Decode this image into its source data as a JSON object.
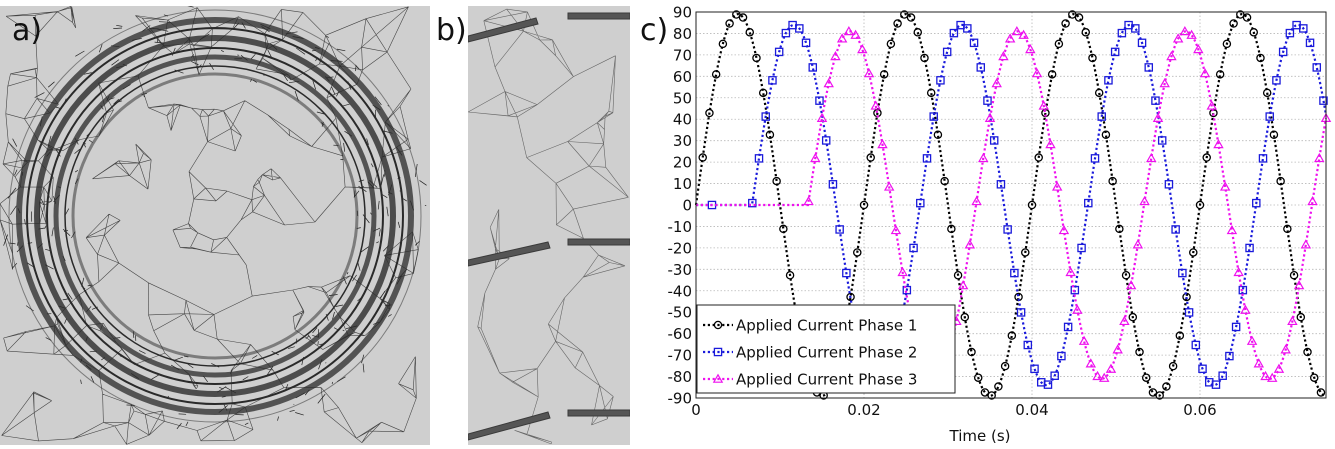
{
  "panels": {
    "a": {
      "label": "a)"
    },
    "b": {
      "label": "b)"
    },
    "c": {
      "label": "c)"
    }
  },
  "colors": {
    "phase1": "#000000",
    "phase2": "#1a1adb",
    "phase3": "#ee11ee",
    "mesh_bg": "#cfcfcf",
    "mesh_line": "#3a3a3a"
  },
  "chart_data": {
    "type": "line",
    "title": "",
    "xlabel": "Time (s)",
    "ylabel": "",
    "xlim": [
      0,
      0.075
    ],
    "ylim": [
      -90,
      90
    ],
    "xticks": [
      0,
      0.02,
      0.04,
      0.06
    ],
    "xtick_labels": [
      "0",
      "0.02",
      "0.04",
      "0.06"
    ],
    "yticks": [
      90,
      80,
      70,
      60,
      50,
      40,
      30,
      20,
      10,
      0,
      -10,
      -20,
      -30,
      -40,
      -50,
      -60,
      -70,
      -80,
      -90
    ],
    "ytick_labels": [
      "90",
      "80",
      "70",
      "60",
      "50",
      "40",
      "30",
      "20",
      "10",
      "0",
      "-10",
      "-20",
      "-30",
      "-40",
      "-50",
      "-60",
      "-70",
      "-80",
      "-90"
    ],
    "grid": true,
    "legend_position": "bottom-left",
    "frequency_hz": 50,
    "series": [
      {
        "name": "Applied Current Phase 1",
        "marker": "circle",
        "amplitude": 89,
        "phase_deg": 0,
        "start_time": 0
      },
      {
        "name": "Applied Current Phase 2",
        "marker": "square",
        "amplitude": 84,
        "phase_deg": -120,
        "start_time": 0.00667
      },
      {
        "name": "Applied Current Phase 3",
        "marker": "triangle",
        "amplitude": 81,
        "phase_deg": -240,
        "start_time": 0.01333
      }
    ]
  }
}
